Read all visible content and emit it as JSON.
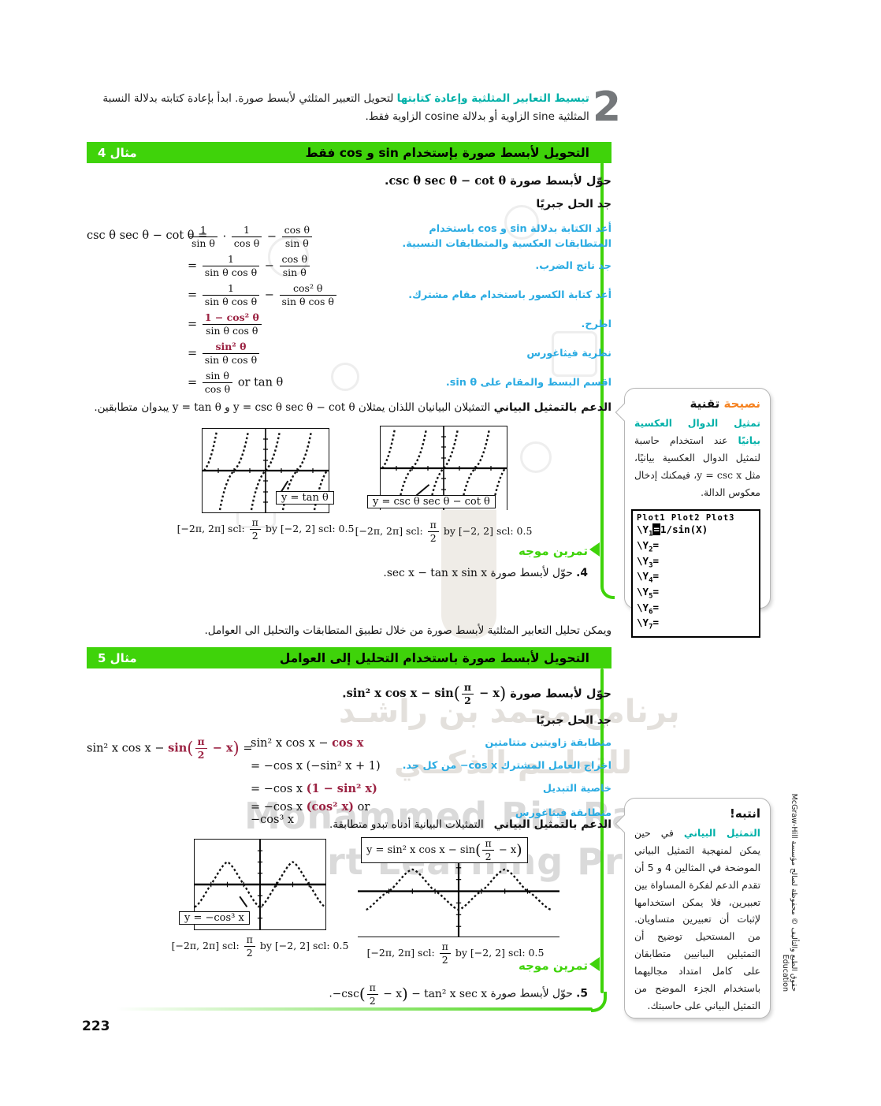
{
  "page_number": "223",
  "copyright": "حقوق الطبع والتأليف © محفوظة لصالح مؤسسة McGraw-Hill Education",
  "watermark": {
    "ar1": "برنامج محمد بن راشـد",
    "ar2": "للتعلــم الذكــي",
    "en1": "Mohammed Bin Rashid",
    "en2": "Smart Learning Program"
  },
  "intro": {
    "numeral": "2",
    "heading": "تبسيط التعابير المثلثية وإعادة كتابتها",
    "body": "لتحويل التعبير المثلثي لأبسط صورة. ابدأ بإعادة كتابته بدلالة النسبة المثلثية sine الزاوية أو بدلالة cosine الزاوية فقط."
  },
  "example4": {
    "label": "مثال 4",
    "title": "التحويل لأبسط صورة بإستخدام sin و cos فقط",
    "problem_lead": "حوّل لأبسط صورة",
    "problem_math": "csc θ sec θ − cot θ",
    "period": ".",
    "solve": "جد الحل جبريًا",
    "lhs": "csc θ sec θ − cot θ =",
    "steps": [
      {
        "note": "أعد الكتابة بدلالة sin و cos باستخدام المتطابقات العكسية والمتطابقات النسبية.",
        "eq": "",
        "math": [
          {
            "f": [
              "1",
              "sin θ"
            ]
          },
          {
            "t": " · "
          },
          {
            "f": [
              "1",
              "cos θ"
            ]
          },
          {
            "t": " − "
          },
          {
            "f": [
              "cos θ",
              "sin θ"
            ]
          }
        ]
      },
      {
        "note": "جد ناتج الضرب.",
        "eq": "= ",
        "math": [
          {
            "f": [
              "1",
              "sin θ cos θ"
            ]
          },
          {
            "t": " − "
          },
          {
            "f": [
              "cos θ",
              "sin θ"
            ]
          }
        ]
      },
      {
        "note": "أعد كتابة الكسور باستخدام مقام مشترك.",
        "eq": "= ",
        "math": [
          {
            "f": [
              "1",
              "sin θ cos θ"
            ]
          },
          {
            "t": " − "
          },
          {
            "f": [
              "cos² θ",
              "sin θ cos θ"
            ]
          }
        ]
      },
      {
        "note": "اطرح.",
        "eq": "= ",
        "math": [
          {
            "f": [
              "1 − cos² θ",
              "sin θ cos θ"
            ],
            "hl": "num"
          }
        ]
      },
      {
        "note": "نظرية فيثاغورس",
        "eq": "= ",
        "math": [
          {
            "f": [
              "sin² θ",
              "sin θ cos θ"
            ],
            "hl": "num"
          }
        ]
      },
      {
        "note": "اقسم البسط والمقام على sin θ.",
        "eq": "= ",
        "math": [
          {
            "f": [
              "sin θ",
              "cos θ"
            ]
          },
          {
            "t": " or tan θ"
          }
        ]
      }
    ],
    "support_lead": "الدعم بالتمثيل البياني",
    "support_p1": "التمثيلان البيانيان اللذان يمثلان",
    "support_m1": "y = csc θ sec θ − cot θ",
    "support_mid": "و",
    "support_m2": "y = tan θ",
    "support_p2": "يبدوان متطابقين.",
    "graph_left_label": "y = tan θ",
    "graph_right_label": "y = csc θ sec θ − cot θ",
    "caption": [
      {
        "t": "[−2π, 2π] scl: "
      },
      {
        "f": [
          "π",
          "2"
        ]
      },
      {
        "t": " by [−2, 2] scl: 0.5"
      }
    ],
    "guided_heading": "تمرين موجه",
    "guided_number": "4.",
    "guided_text": "حوّل لأبسط صورة",
    "guided_math": [
      {
        "t": "sec x − tan x sin x"
      }
    ],
    "guided_period": "."
  },
  "tech_tip": {
    "title_hl": "نصيحة",
    "title_rest": "تقنية",
    "lead": "تمثيل الدوال العكسية بيانيًا",
    "body_pre": "عند استخدام حاسبة لتمثيل الدوال العكسية بيانيًا، مثل",
    "body_math": "y = csc x",
    "body_post": "، فيمكنك إدخال معكوس الدالة.",
    "calc_header": "Plot1  Plot2  Plot3",
    "calc_rows": [
      {
        "n": "1",
        "eq": "1/sin(X)",
        "sel": true
      },
      {
        "n": "2"
      },
      {
        "n": "3"
      },
      {
        "n": "4"
      },
      {
        "n": "5"
      },
      {
        "n": "6"
      },
      {
        "n": "7"
      }
    ]
  },
  "between": "ويمكن تحليل التعابير المثلثية لأبسط صورة من خلال تطبيق المتطابقات والتحليل الى العوامل.",
  "example5": {
    "label": "مثال 5",
    "title": "التحويل لأبسط صورة باستخدام التحليل إلى العوامل",
    "problem_lead": "حوّل لأبسط صورة",
    "problem_math": [
      {
        "t": "sin² x cos x − sin"
      },
      {
        "p": "("
      },
      {
        "f": [
          "π",
          "2"
        ]
      },
      {
        "t": " − x"
      },
      {
        "p": ")"
      }
    ],
    "period": ".",
    "solve": "جد الحل جبريًا",
    "lhs": [
      {
        "t": "sin² x cos x − "
      },
      {
        "t": "sin",
        "c": 1
      },
      {
        "p": "(",
        "c": 1
      },
      {
        "f": [
          "π",
          "2"
        ],
        "c": 1
      },
      {
        "t": " − x",
        "c": 1
      },
      {
        "p": ")",
        "c": 1
      },
      {
        "t": " ="
      }
    ],
    "steps": [
      {
        "note": "متطابقة زاويتين متتامتين",
        "eq": "",
        "math": [
          {
            "t": "sin² x cos x − "
          },
          {
            "t": "cos x",
            "c": 1
          }
        ]
      },
      {
        "note": "اخراج العامل المشترك ‎−cos x‎ من كل حد.",
        "eq": "= ",
        "math": [
          {
            "t": "−cos x (−sin² x + 1)"
          }
        ]
      },
      {
        "note": "خاصية التبديل",
        "eq": "= ",
        "math": [
          {
            "t": "−cos x "
          },
          {
            "t": "(1 − sin² x)",
            "c": 1
          }
        ]
      },
      {
        "note": "متطابقة فيثاغورس",
        "eq": "= ",
        "math": [
          {
            "t": "−cos x "
          },
          {
            "t": "(cos² x)",
            "c": 1
          },
          {
            "t": " or −cos³ x"
          }
        ]
      }
    ],
    "support_lead": "الدعم بالتمثيل البياني",
    "support_text": "التمثيلات البيانية أدناه تبدو متطابقة.",
    "graph_left_label": "y = −cos³ x",
    "graph_right_label": [
      {
        "t": "y = sin² x cos x − sin"
      },
      {
        "p": "("
      },
      {
        "f": [
          "π",
          "2"
        ]
      },
      {
        "t": " − x"
      },
      {
        "p": ")"
      }
    ],
    "caption": [
      {
        "t": "[−2π, 2π] scl: "
      },
      {
        "f": [
          "π",
          "2"
        ]
      },
      {
        "t": " by [−2, 2] scl: 0.5"
      }
    ],
    "guided_heading": "تمرين موجه",
    "guided_number": "5.",
    "guided_text": "حوّل لأبسط صورة",
    "guided_math": [
      {
        "t": "−csc"
      },
      {
        "p": "("
      },
      {
        "f": [
          "π",
          "2"
        ]
      },
      {
        "t": " − x"
      },
      {
        "p": ")"
      },
      {
        "t": " − tan² x sec x"
      }
    ],
    "guided_period": "."
  },
  "caution": {
    "title": "انتبه!",
    "lead": "التمثيل البياني",
    "body": "في حين يمكن لمنهجية التمثيل البياني الموضحة في المثالين 4 و 5 أن تقدم الدعم لفكرة المساواة بين تعبيرين، فلا يمكن استخدامها لإثبات أن تعبيرين متساويان. من المستحيل توضيح أن التمثيلين البيانيين متطابقان على كامل امتداد مجاليهما باستخدام الجزء الموضح من التمثيل البياني على حاسبتك."
  }
}
